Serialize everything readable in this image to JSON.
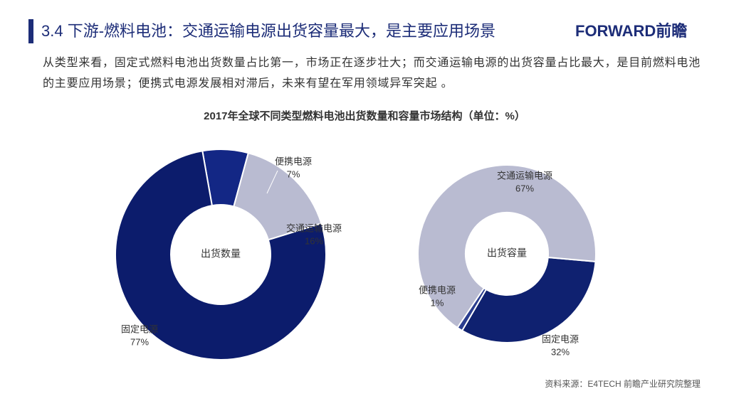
{
  "header": {
    "title": "3.4 下游-燃料电池：交通运输电源出货容量最大，是主要应用场景",
    "brand": "FORWARD前瞻"
  },
  "description": "从类型来看，固定式燃料电池出货数量占比第一，市场正在逐步壮大；而交通运输电源的出货容量占比最大，是目前燃料电池的主要应用场景；便携式电源发展相对滞后，未来有望在军用领域异军突起 。",
  "title": "2017年全球不同类型燃料电池出货数量和容量市场结构（单位：%）",
  "source": "资料来源：E4TECH 前瞻产业研究院整理",
  "chart_data": [
    {
      "type": "pie",
      "center_label": "出货数量",
      "categories": [
        "便携电源",
        "交通运输电源",
        "固定电源"
      ],
      "values": [
        7,
        16,
        77
      ],
      "value_labels": [
        "7%",
        "16%",
        "77%"
      ],
      "colors": [
        "#132785",
        "#b9bbd1",
        "#0c1c6c"
      ]
    },
    {
      "type": "pie",
      "center_label": "出货容量",
      "categories": [
        "固定电源",
        "便携电源",
        "交通运输电源"
      ],
      "values": [
        32,
        1,
        67
      ],
      "value_labels": [
        "32%",
        "1%",
        "67%"
      ],
      "colors": [
        "#0f2170",
        "#2a3d8f",
        "#b9bbd1"
      ]
    }
  ]
}
